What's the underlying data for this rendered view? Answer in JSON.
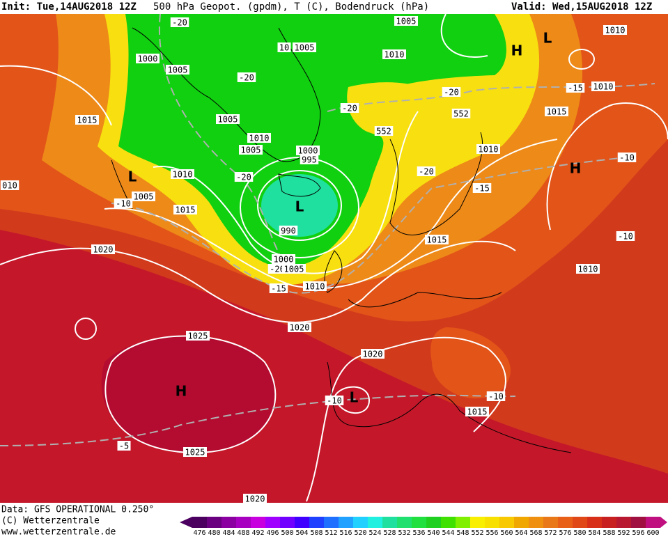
{
  "header": {
    "init": "Init: Tue,14AUG2018 12Z",
    "title": "500 hPa Geopot. (gpdm), T (C), Bodendruck (hPa)",
    "valid": "Valid: Wed,15AUG2018 12Z"
  },
  "footer": {
    "data": "Data: GFS OPERATIONAL 0.250°",
    "copyright": "(C) Wetterzentrale",
    "url": "www.wetterzentrale.de"
  },
  "map": {
    "labels": [
      "1005",
      "-20",
      "1000",
      "10",
      "1005",
      "1010",
      "H",
      "L",
      "1010",
      "1005",
      "-20",
      "-20",
      "-15",
      "1010",
      "1015",
      "1005",
      "-20",
      "552",
      "552",
      "1015",
      "1010",
      "1005",
      "1000",
      "995",
      "1010",
      "-10",
      "H",
      "L",
      "1010",
      "-20",
      "-20",
      "-15",
      "010",
      "1005",
      "-10",
      "L",
      "1015",
      "990",
      "-10",
      "1015",
      "1020",
      "1000",
      "-20",
      "1005",
      "1010",
      "-15",
      "1010",
      "1020",
      "1025",
      "1020",
      "H",
      "-10",
      "L",
      "-10",
      "1015",
      "-5",
      "1025",
      "1020"
    ]
  },
  "colorbar": {
    "values": [
      476,
      480,
      484,
      488,
      492,
      496,
      500,
      504,
      508,
      512,
      516,
      520,
      524,
      528,
      532,
      536,
      540,
      544,
      548,
      552,
      556,
      560,
      564,
      568,
      572,
      576,
      580,
      584,
      588,
      592,
      596,
      600
    ],
    "colors": [
      "#4b0060",
      "#6a0080",
      "#8a00a0",
      "#a800c0",
      "#c800e0",
      "#a000ff",
      "#7000ff",
      "#4000ff",
      "#2040ff",
      "#2070ff",
      "#20a0ff",
      "#20d0ff",
      "#20f0e0",
      "#20e0a0",
      "#20e070",
      "#20e040",
      "#20d020",
      "#40e000",
      "#80f000",
      "#f8f000",
      "#f8e000",
      "#f8c800",
      "#f0a800",
      "#f09010",
      "#e87818",
      "#e86018",
      "#e04818",
      "#d83018",
      "#c82020",
      "#b81830",
      "#a01040",
      "#c01080"
    ]
  }
}
